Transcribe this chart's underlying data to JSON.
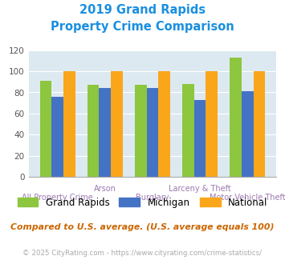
{
  "title_line1": "2019 Grand Rapids",
  "title_line2": "Property Crime Comparison",
  "title_color": "#1a8fe0",
  "categories": [
    "All Property Crime",
    "Arson",
    "Burglary",
    "Larceny & Theft",
    "Motor Vehicle Theft"
  ],
  "grand_rapids": [
    91,
    87,
    87,
    88,
    113
  ],
  "michigan": [
    76,
    84,
    84,
    73,
    81
  ],
  "national": [
    100,
    100,
    100,
    100,
    100
  ],
  "color_gr": "#8dc63f",
  "color_mi": "#4472c4",
  "color_nat": "#faa61a",
  "ylim": [
    0,
    120
  ],
  "yticks": [
    0,
    20,
    40,
    60,
    80,
    100,
    120
  ],
  "background_color": "#dde9f0",
  "legend_labels": [
    "Grand Rapids",
    "Michigan",
    "National"
  ],
  "note": "Compared to U.S. average. (U.S. average equals 100)",
  "footer": "© 2025 CityRating.com - https://www.cityrating.com/crime-statistics/",
  "note_color": "#cc6600",
  "footer_color": "#aaaaaa",
  "xlabel_color": "#9b7ab0",
  "bar_width": 0.25
}
